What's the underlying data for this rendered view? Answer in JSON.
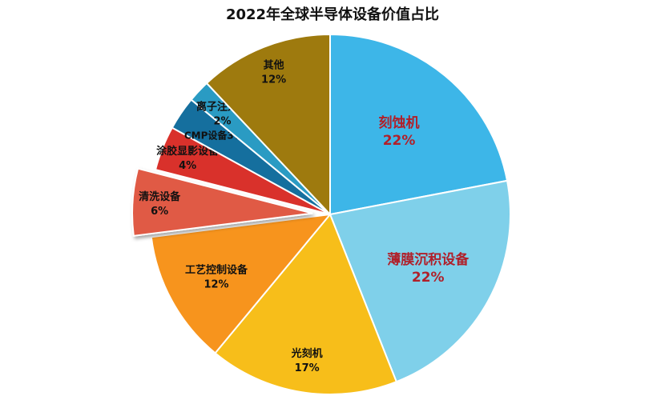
{
  "chart_data": {
    "type": "pie",
    "title": "2022年全球半导体设备价值占比",
    "slices": [
      {
        "label": "刻蚀机",
        "value": 22,
        "value_text": "22%",
        "color": "#3DB6E8",
        "label_color": "#B0202A"
      },
      {
        "label": "薄膜沉积设备",
        "value": 22,
        "value_text": "22%",
        "color": "#7FD0EA",
        "label_color": "#B0202A"
      },
      {
        "label": "光刻机",
        "value": 17,
        "value_text": "17%",
        "color": "#F7BE1A",
        "label_color": "#111111"
      },
      {
        "label": "工艺控制设备",
        "value": 12,
        "value_text": "12%",
        "color": "#F7941D",
        "label_color": "#111111"
      },
      {
        "label": "清洗设备",
        "value": 6,
        "value_text": "6%",
        "color": "#E05A44",
        "label_color": "#111111",
        "exploded": true
      },
      {
        "label": "涂胶显影设备",
        "value": 4,
        "value_text": "4%",
        "color": "#D9312B",
        "label_color": "#111111"
      },
      {
        "label": "CMP设备",
        "value": 3,
        "value_text": "3%",
        "color": "#156F9E",
        "label_color": "#111111"
      },
      {
        "label": "离子注入机",
        "value": 2,
        "value_text": "2%",
        "color": "#2A9BC3",
        "label_color": "#111111"
      },
      {
        "label": "其他",
        "value": 12,
        "value_text": "12%",
        "color": "#9E7A0E",
        "label_color": "#111111"
      }
    ]
  }
}
